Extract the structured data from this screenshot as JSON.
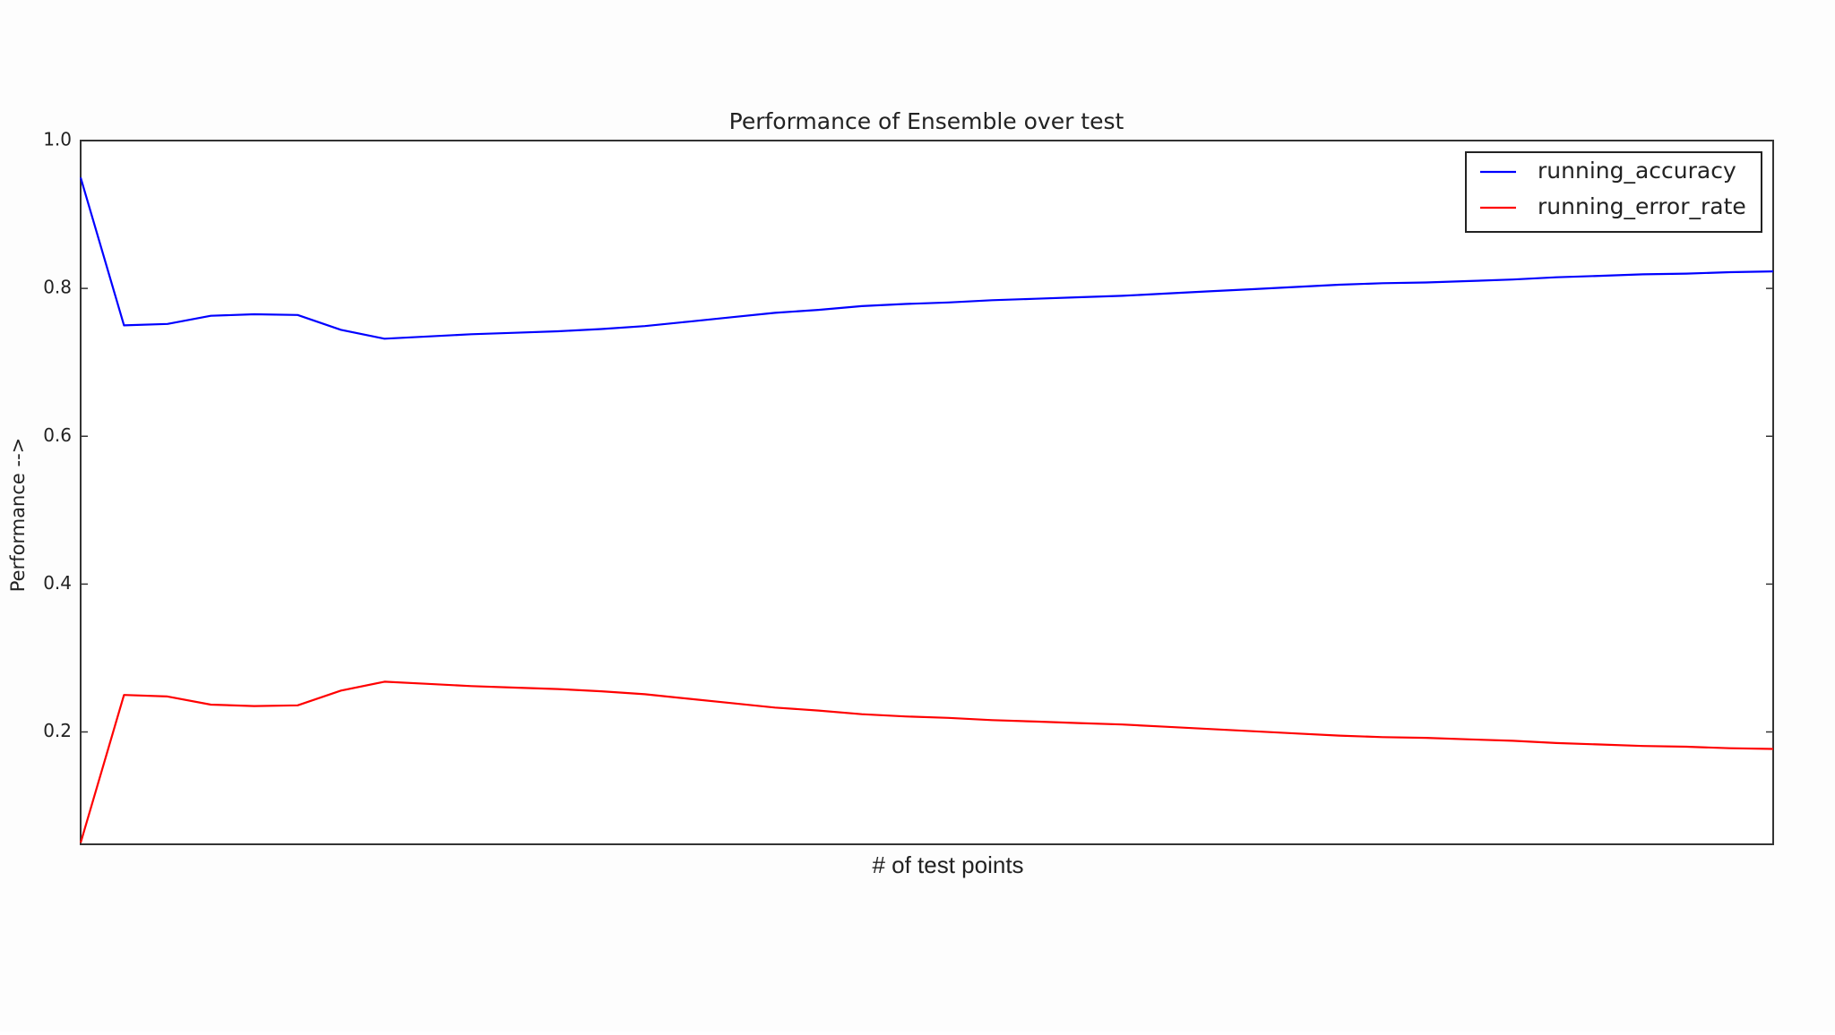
{
  "chart_data": {
    "type": "line",
    "title": "Performance of Ensemble over test",
    "x_label": "# of test points",
    "y_label": "Performance -->",
    "ylim": [
      0.048,
      1.0
    ],
    "yticks": [
      {
        "value": 0.2,
        "label": "0.2"
      },
      {
        "value": 0.4,
        "label": "0.4"
      },
      {
        "value": 0.6,
        "label": "0.6"
      },
      {
        "value": 0.8,
        "label": "0.8"
      },
      {
        "value": 1.0,
        "label": "1.0"
      }
    ],
    "legend": "upper right",
    "series": [
      {
        "name": "running_accuracy",
        "color": "#0000ff",
        "values": [
          0.95,
          0.75,
          0.752,
          0.763,
          0.765,
          0.764,
          0.744,
          0.732,
          0.735,
          0.738,
          0.74,
          0.742,
          0.745,
          0.749,
          0.755,
          0.761,
          0.767,
          0.771,
          0.776,
          0.779,
          0.781,
          0.784,
          0.786,
          0.788,
          0.79,
          0.793,
          0.796,
          0.799,
          0.802,
          0.805,
          0.807,
          0.808,
          0.81,
          0.812,
          0.815,
          0.817,
          0.819,
          0.82,
          0.822,
          0.823
        ]
      },
      {
        "name": "running_error_rate",
        "color": "#ff0000",
        "values": [
          0.05,
          0.25,
          0.248,
          0.237,
          0.235,
          0.236,
          0.256,
          0.268,
          0.265,
          0.262,
          0.26,
          0.258,
          0.255,
          0.251,
          0.245,
          0.239,
          0.233,
          0.229,
          0.224,
          0.221,
          0.219,
          0.216,
          0.214,
          0.212,
          0.21,
          0.207,
          0.204,
          0.201,
          0.198,
          0.195,
          0.193,
          0.192,
          0.19,
          0.188,
          0.185,
          0.183,
          0.181,
          0.18,
          0.178,
          0.177
        ]
      }
    ]
  }
}
